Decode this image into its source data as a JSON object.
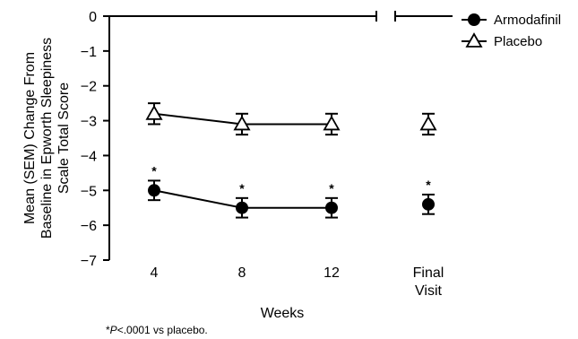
{
  "chart_data": {
    "type": "line",
    "categories": [
      "4",
      "8",
      "12",
      "Final Visit"
    ],
    "category_lines": [
      [
        "4"
      ],
      [
        "8"
      ],
      [
        "12"
      ],
      [
        "Final",
        "Visit"
      ]
    ],
    "xlabel": "Weeks",
    "ylabel_lines": [
      "Mean (SEM) Change From",
      "Baseline in Epworth Sleepiness",
      "Scale Total Score"
    ],
    "ylim": [
      -7,
      0
    ],
    "yticks": [
      "0",
      "−1",
      "−2",
      "−3",
      "−4",
      "−5",
      "−6",
      "−7"
    ],
    "axis_break": true,
    "legend_position": "top-right",
    "series": [
      {
        "name": "Armodafinil",
        "marker": "filled-circle",
        "values": [
          -5.0,
          -5.5,
          -5.5,
          -5.4
        ],
        "sem": [
          0.28,
          0.28,
          0.28,
          0.28
        ],
        "significance": [
          "*",
          "*",
          "*",
          "*"
        ]
      },
      {
        "name": "Placebo",
        "marker": "open-triangle",
        "values": [
          -2.8,
          -3.1,
          -3.1,
          -3.1
        ],
        "sem": [
          0.3,
          0.3,
          0.3,
          0.3
        ],
        "significance": [
          "",
          "",
          "",
          ""
        ]
      }
    ],
    "footnote_star": "*",
    "footnote_p": "P",
    "footnote_rest": "<.0001 vs placebo."
  }
}
